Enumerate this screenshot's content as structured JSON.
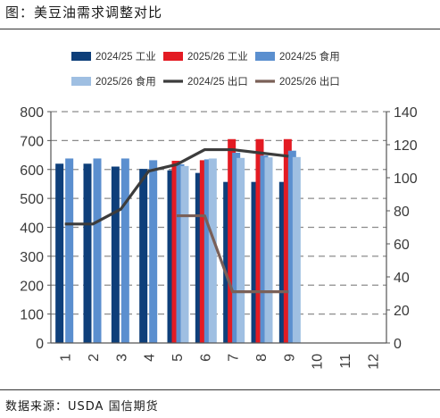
{
  "figure": {
    "title": "图：美豆油需求调整对比",
    "source": "数据来源：USDA 国信期货"
  },
  "chart_data": {
    "type": "bar",
    "categories": [
      "1",
      "2",
      "3",
      "4",
      "5",
      "6",
      "7",
      "8",
      "9",
      "10",
      "11",
      "12"
    ],
    "y_left": {
      "ticks": [
        0,
        100,
        200,
        300,
        400,
        500,
        600,
        700,
        800
      ],
      "ylim": [
        0,
        800
      ]
    },
    "y_right": {
      "ticks": [
        0,
        20,
        40,
        60,
        80,
        100,
        120,
        140
      ],
      "ylim": [
        0,
        140
      ]
    },
    "grid": "dashed horizontal",
    "legend_placement": "top",
    "series": [
      {
        "name": "2024/25 工业",
        "kind": "bar",
        "axis": "left",
        "color": "#0e3f7a",
        "values": [
          620,
          620,
          610,
          602,
          597,
          588,
          557,
          557,
          557,
          null,
          null,
          null
        ]
      },
      {
        "name": "2025/26 工业",
        "kind": "bar",
        "axis": "left",
        "color": "#e31b23",
        "values": [
          null,
          null,
          null,
          null,
          630,
          632,
          705,
          705,
          705,
          null,
          null,
          null
        ]
      },
      {
        "name": "2024/25 食用",
        "kind": "bar",
        "axis": "left",
        "color": "#5b8fcf",
        "values": [
          638,
          638,
          638,
          632,
          618,
          635,
          658,
          648,
          665,
          null,
          null,
          null
        ]
      },
      {
        "name": "2025/26 食用",
        "kind": "bar",
        "axis": "left",
        "color": "#9fbfe2",
        "values": [
          null,
          null,
          null,
          null,
          612,
          638,
          640,
          642,
          643,
          null,
          null,
          null
        ]
      },
      {
        "name": "2024/25 出口",
        "kind": "line",
        "axis": "right",
        "color": "#3c3c3c",
        "values": [
          72,
          72,
          81,
          104,
          108,
          117,
          117,
          115,
          113,
          null,
          null,
          null
        ]
      },
      {
        "name": "2025/26 出口",
        "kind": "line",
        "axis": "right",
        "color": "#7a6058",
        "values": [
          null,
          null,
          null,
          null,
          77,
          77,
          31,
          31,
          31,
          null,
          null,
          null
        ]
      }
    ]
  }
}
